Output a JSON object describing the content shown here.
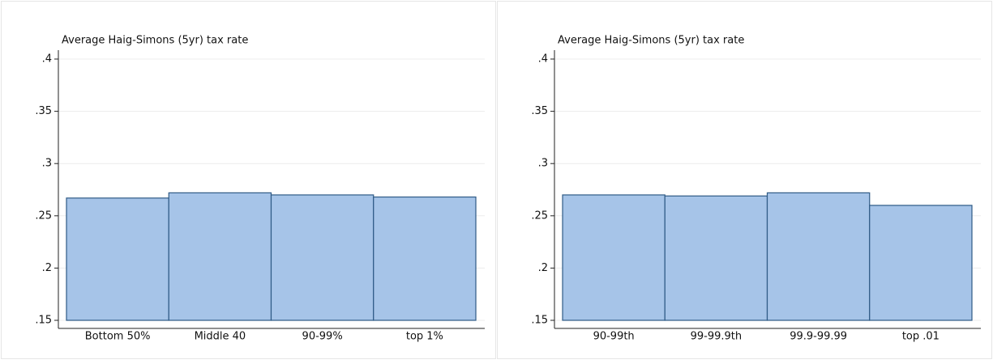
{
  "chart_data": [
    {
      "type": "bar",
      "title": "Average Haig-Simons (5yr) tax rate",
      "categories": [
        "Bottom 50%",
        "Middle 40",
        "90-99%",
        "top 1%"
      ],
      "values": [
        0.267,
        0.272,
        0.27,
        0.268
      ],
      "color": "#a6c4e8",
      "edge_color": "#2f5b86",
      "ylim": [
        0.15,
        0.4
      ],
      "yticks": [
        {
          "value": 0.15,
          "label": ".15"
        },
        {
          "value": 0.2,
          "label": ".2"
        },
        {
          "value": 0.25,
          "label": ".25"
        },
        {
          "value": 0.3,
          "label": ".3"
        },
        {
          "value": 0.35,
          "label": ".35"
        },
        {
          "value": 0.4,
          "label": ".4"
        }
      ],
      "grid": true
    },
    {
      "type": "bar",
      "title": "Average Haig-Simons (5yr) tax rate",
      "categories": [
        "90-99th",
        "99-99.9th",
        "99.9-99.99",
        "top .01"
      ],
      "values": [
        0.27,
        0.269,
        0.272,
        0.26
      ],
      "color": "#a6c4e8",
      "edge_color": "#2f5b86",
      "ylim": [
        0.15,
        0.4
      ],
      "yticks": [
        {
          "value": 0.15,
          "label": ".15"
        },
        {
          "value": 0.2,
          "label": ".2"
        },
        {
          "value": 0.25,
          "label": ".25"
        },
        {
          "value": 0.3,
          "label": ".3"
        },
        {
          "value": 0.35,
          "label": ".35"
        },
        {
          "value": 0.4,
          "label": ".4"
        }
      ],
      "grid": true
    }
  ]
}
